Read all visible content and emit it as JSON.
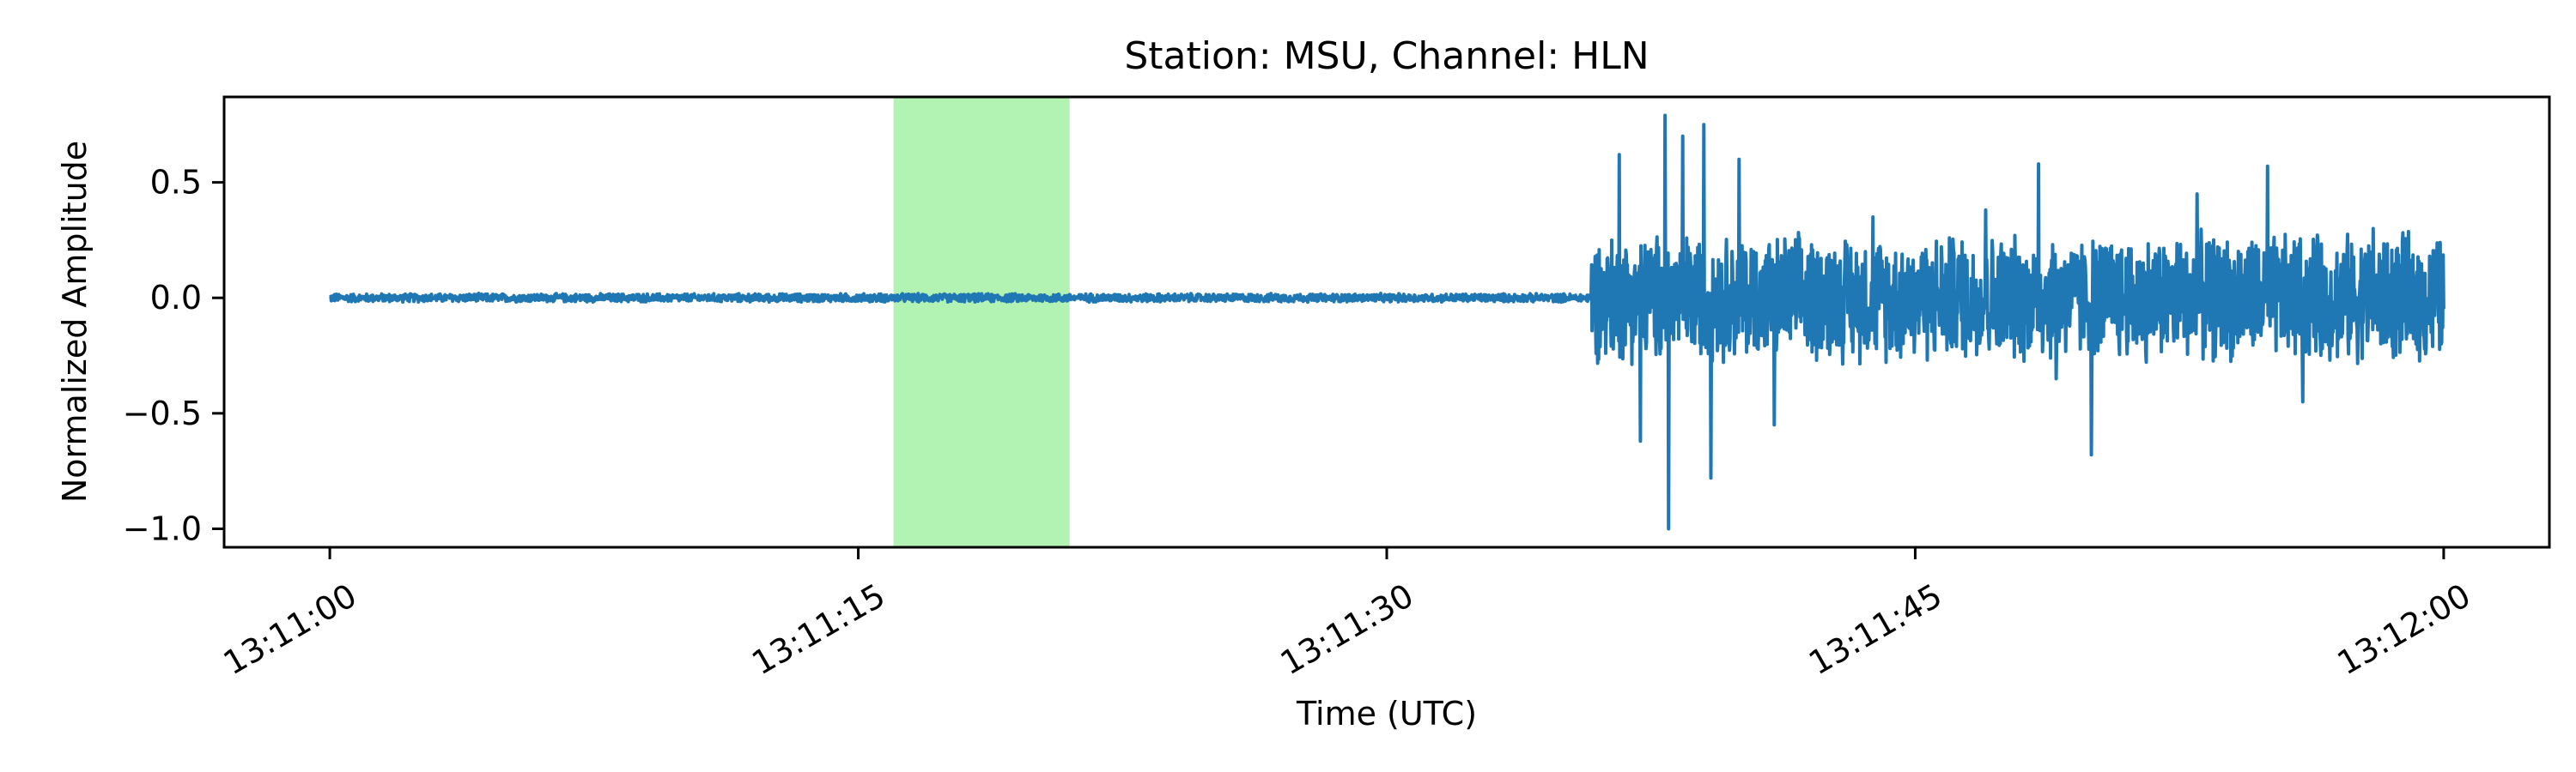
{
  "chart_data": {
    "type": "line",
    "title": "Station: MSU, Channel: HLN",
    "xlabel": "Time (UTC)",
    "ylabel": "Normalized Amplitude",
    "x_start": "13:11:00",
    "x_end": "13:12:00",
    "xlim_seconds": [
      -3,
      63
    ],
    "ylim": [
      -1.08,
      0.87
    ],
    "x_ticks": [
      {
        "label": "13:11:00",
        "value": 0
      },
      {
        "label": "13:11:15",
        "value": 15
      },
      {
        "label": "13:11:30",
        "value": 30
      },
      {
        "label": "13:11:45",
        "value": 45
      },
      {
        "label": "13:12:00",
        "value": 60
      }
    ],
    "y_ticks": [
      {
        "label": "0.5",
        "value": 0.5
      },
      {
        "label": "0.0",
        "value": 0.0
      },
      {
        "label": "−0.5",
        "value": -0.5
      },
      {
        "label": "−1.0",
        "value": -1.0
      }
    ],
    "highlight": {
      "x_start": 16.0,
      "x_end": 21.0,
      "color": "#b2f2b2"
    },
    "series": [
      {
        "color": "#1f77b4",
        "segments": [
          {
            "x_start": 0,
            "x_end": 35.8,
            "amplitude": 0.02
          },
          {
            "x_start": 35.8,
            "x_end": 60,
            "amplitude": 0.3
          }
        ],
        "peaks": [
          {
            "x": 36.6,
            "y": 0.62
          },
          {
            "x": 37.2,
            "y": -0.62
          },
          {
            "x": 37.9,
            "y": 0.79
          },
          {
            "x": 38.0,
            "y": -1.0
          },
          {
            "x": 38.4,
            "y": 0.7
          },
          {
            "x": 39.0,
            "y": 0.75
          },
          {
            "x": 39.2,
            "y": -0.78
          },
          {
            "x": 40.0,
            "y": 0.6
          },
          {
            "x": 41.0,
            "y": -0.55
          },
          {
            "x": 43.8,
            "y": 0.35
          },
          {
            "x": 47.0,
            "y": 0.38
          },
          {
            "x": 48.5,
            "y": 0.58
          },
          {
            "x": 49.0,
            "y": -0.35
          },
          {
            "x": 50.0,
            "y": -0.68
          },
          {
            "x": 53.0,
            "y": 0.45
          },
          {
            "x": 55.0,
            "y": 0.57
          },
          {
            "x": 56.0,
            "y": -0.45
          },
          {
            "x": 58.0,
            "y": 0.3
          },
          {
            "x": 59.5,
            "y": -0.22
          }
        ]
      }
    ]
  }
}
